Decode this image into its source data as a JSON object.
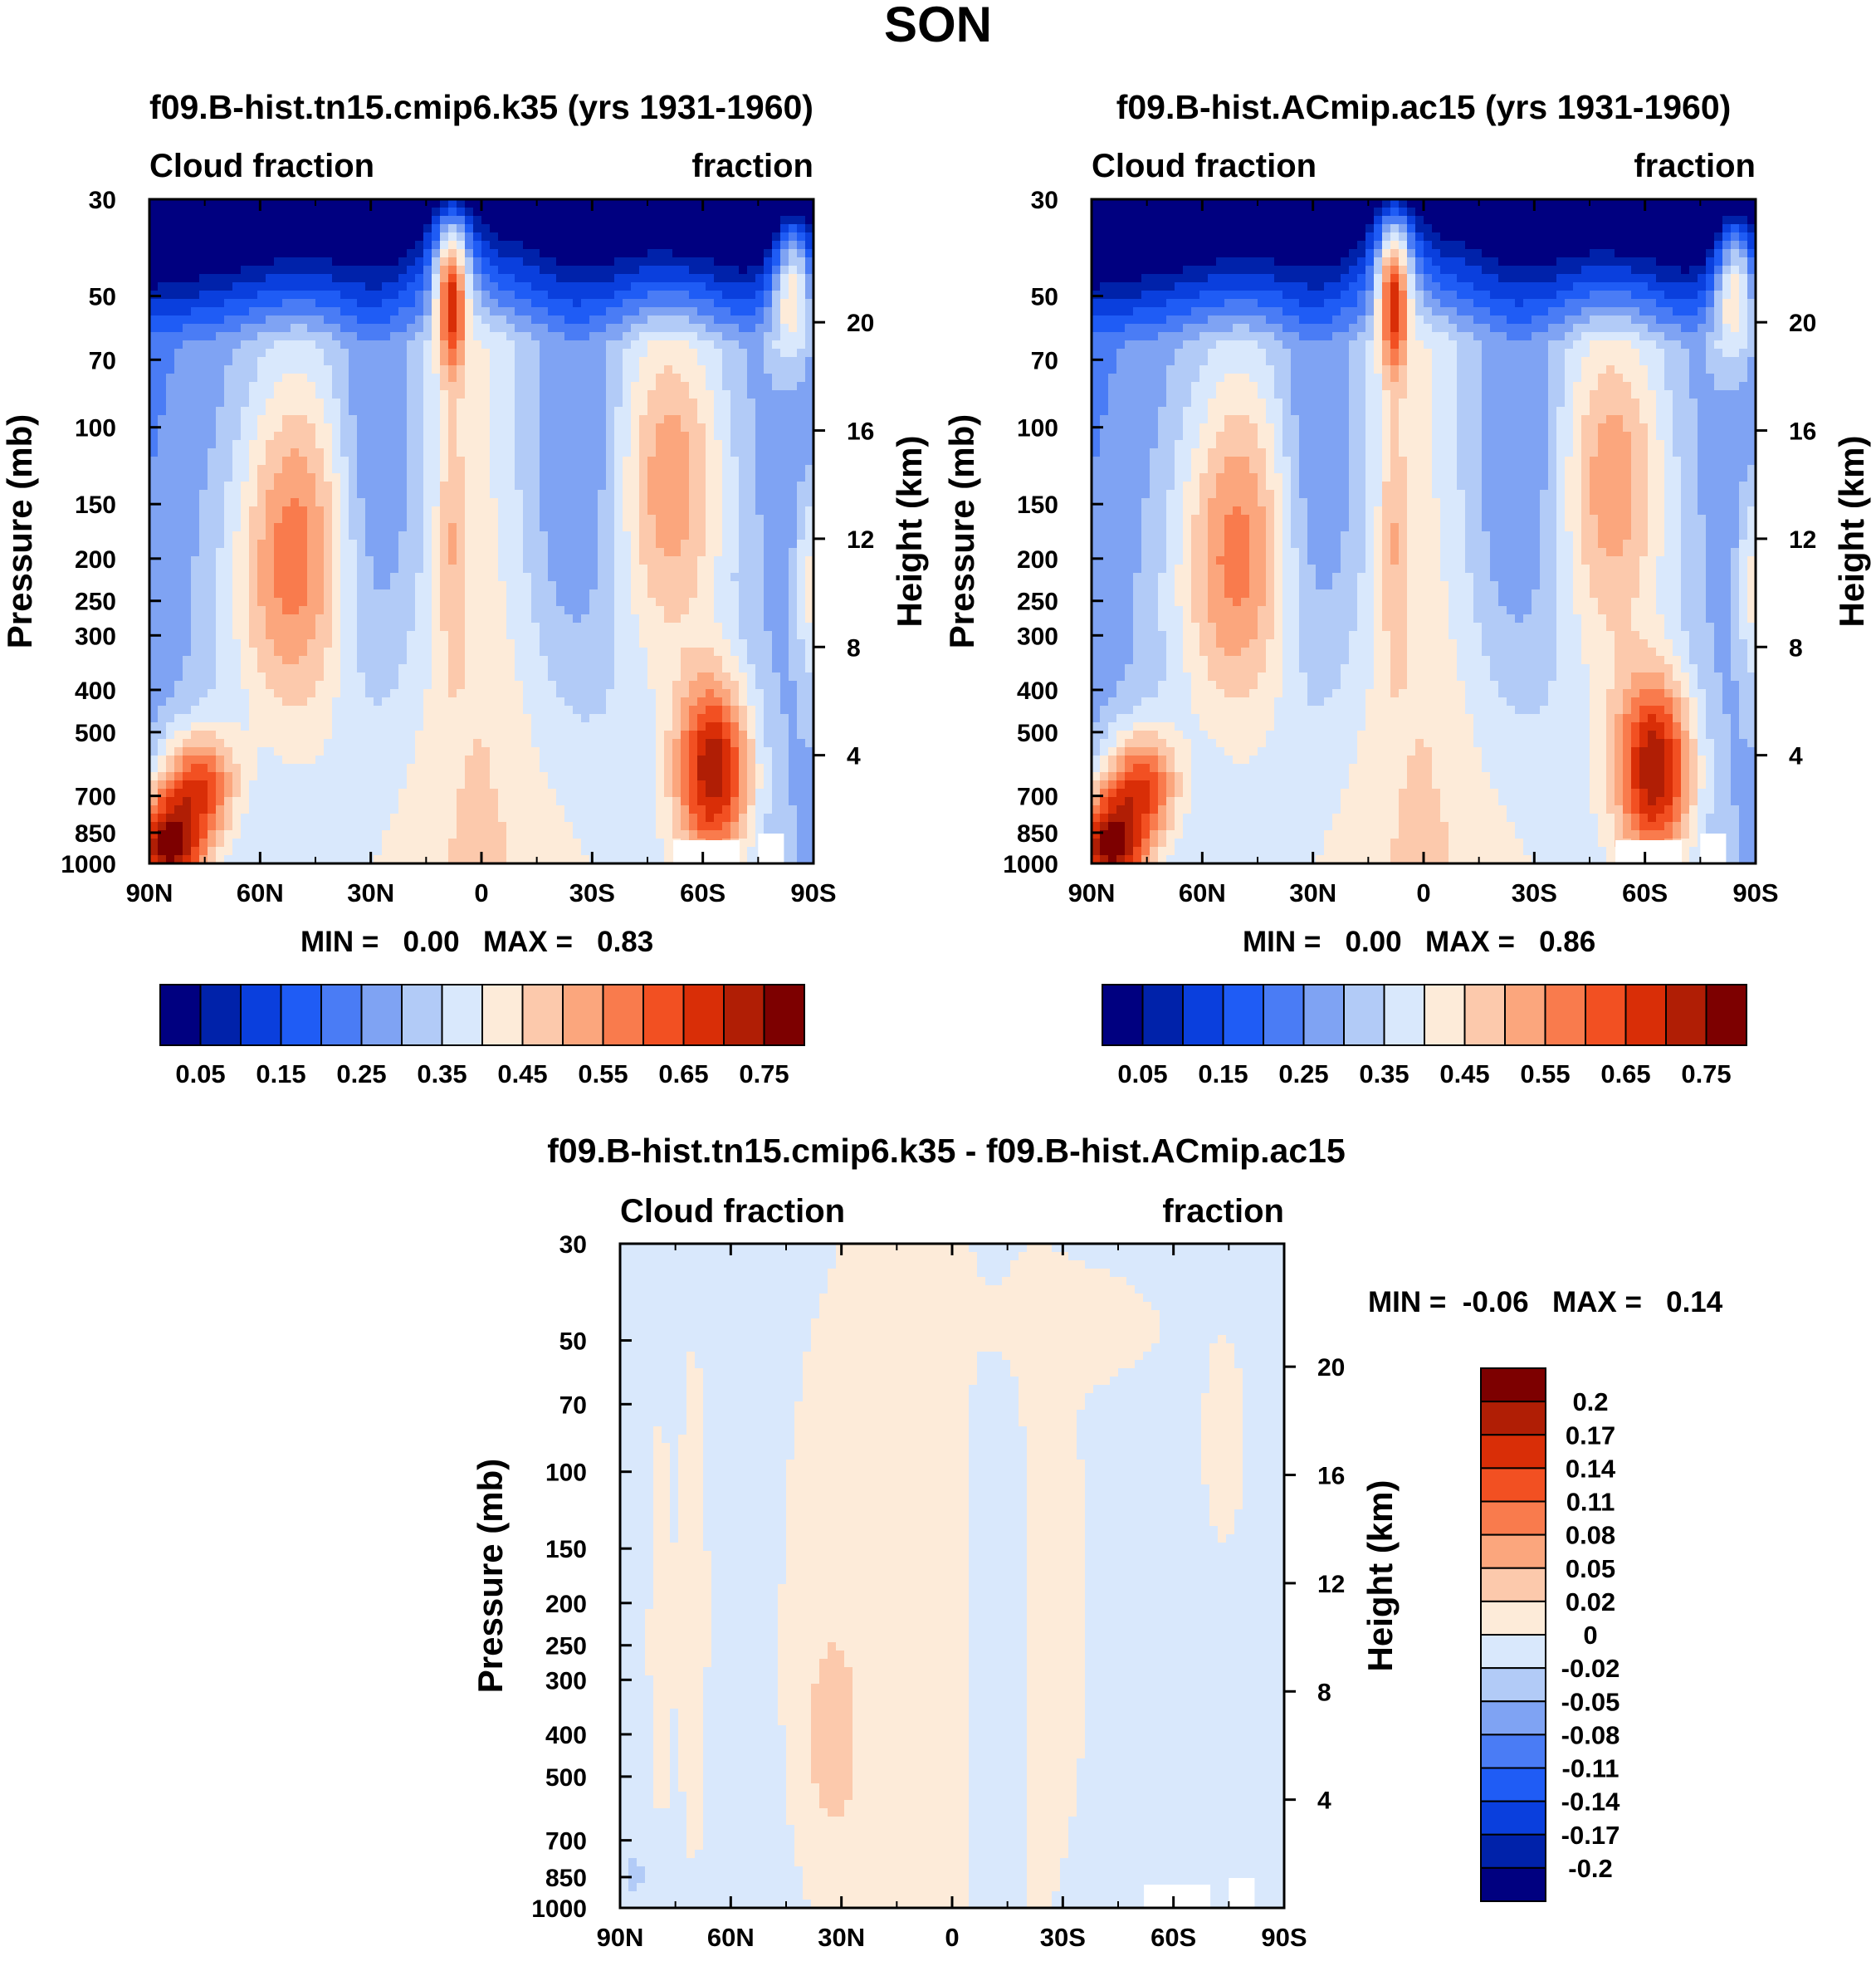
{
  "figure": {
    "title": "SON"
  },
  "colors": {
    "abs_levels": [
      "#000080",
      "#0022aa",
      "#0a3fdd",
      "#1f5cf5",
      "#4a7cf5",
      "#7fa3f3",
      "#b2cbf7",
      "#d9e8fc",
      "#fdebd9",
      "#fcc9ac",
      "#fba67d",
      "#f97b4d",
      "#f25022",
      "#d92e07",
      "#b01e05",
      "#7d0000"
    ],
    "diff_levels": [
      "#000080",
      "#0022aa",
      "#0a3fdd",
      "#1f5cf5",
      "#4a7cf5",
      "#7fa3f3",
      "#b2cbf7",
      "#d9e8fc",
      "#fdebd9",
      "#fcc9ac",
      "#fba67d",
      "#f97b4d",
      "#f25022",
      "#d92e07",
      "#b01e05",
      "#7d0000"
    ]
  },
  "chart_data": [
    {
      "type": "heatmap",
      "title": "f09.B-hist.tn15.cmip6.k35 (yrs 1931-1960)",
      "left_label": "Cloud fraction",
      "right_label": "fraction",
      "ylabel": "Pressure (mb)",
      "ylabel_right": "Height (km)",
      "xlim": [
        90,
        -90
      ],
      "ylim": [
        1000,
        30
      ],
      "x_ticks": [
        90,
        60,
        30,
        0,
        -30,
        -60,
        -90
      ],
      "x_tick_labels": [
        "90N",
        "60N",
        "30N",
        "0",
        "30S",
        "60S",
        "90S"
      ],
      "y_ticks": [
        30,
        50,
        70,
        100,
        150,
        200,
        250,
        300,
        400,
        500,
        700,
        850,
        1000
      ],
      "y_tick_labels": [
        "30",
        "50",
        "70",
        "100",
        "150",
        "200",
        "250",
        "300",
        "400",
        "500",
        "700",
        "850",
        "1000"
      ],
      "height_ticks_km": [
        20,
        16,
        12,
        8,
        4
      ],
      "height_tick_labels": [
        "20",
        "16",
        "12",
        "8",
        "4"
      ],
      "min_label": "MIN =   0.00",
      "max_label": "MAX =   0.83",
      "min": 0.0,
      "max": 0.83,
      "colorbar_levels": [
        0.05,
        0.1,
        0.15,
        0.2,
        0.25,
        0.3,
        0.35,
        0.4,
        0.45,
        0.5,
        0.55,
        0.6,
        0.65,
        0.7,
        0.75
      ],
      "colorbar_labels": [
        "0.05",
        "0.15",
        "0.25",
        "0.35",
        "0.45",
        "0.55",
        "0.65",
        "0.75"
      ],
      "variant": 0
    },
    {
      "type": "heatmap",
      "title": "f09.B-hist.ACmip.ac15 (yrs 1931-1960)",
      "left_label": "Cloud fraction",
      "right_label": "fraction",
      "ylabel": "Pressure (mb)",
      "ylabel_right": "Height (km)",
      "xlim": [
        90,
        -90
      ],
      "ylim": [
        1000,
        30
      ],
      "x_ticks": [
        90,
        60,
        30,
        0,
        -30,
        -60,
        -90
      ],
      "x_tick_labels": [
        "90N",
        "60N",
        "30N",
        "0",
        "30S",
        "60S",
        "90S"
      ],
      "y_ticks": [
        30,
        50,
        70,
        100,
        150,
        200,
        250,
        300,
        400,
        500,
        700,
        850,
        1000
      ],
      "y_tick_labels": [
        "30",
        "50",
        "70",
        "100",
        "150",
        "200",
        "250",
        "300",
        "400",
        "500",
        "700",
        "850",
        "1000"
      ],
      "height_ticks_km": [
        20,
        16,
        12,
        8,
        4
      ],
      "height_tick_labels": [
        "20",
        "16",
        "12",
        "8",
        "4"
      ],
      "min_label": "MIN =   0.00",
      "max_label": "MAX =   0.86",
      "min": 0.0,
      "max": 0.86,
      "colorbar_levels": [
        0.05,
        0.1,
        0.15,
        0.2,
        0.25,
        0.3,
        0.35,
        0.4,
        0.45,
        0.5,
        0.55,
        0.6,
        0.65,
        0.7,
        0.75
      ],
      "colorbar_labels": [
        "0.05",
        "0.15",
        "0.25",
        "0.35",
        "0.45",
        "0.55",
        "0.65",
        "0.75"
      ],
      "variant": 1
    },
    {
      "type": "heatmap",
      "title": "f09.B-hist.tn15.cmip6.k35 - f09.B-hist.ACmip.ac15",
      "left_label": "Cloud fraction",
      "right_label": "fraction",
      "ylabel": "Pressure (mb)",
      "ylabel_right": "Height (km)",
      "xlim": [
        90,
        -90
      ],
      "ylim": [
        1000,
        30
      ],
      "x_ticks": [
        90,
        60,
        30,
        0,
        -30,
        -60,
        -90
      ],
      "x_tick_labels": [
        "90N",
        "60N",
        "30N",
        "0",
        "30S",
        "60S",
        "90S"
      ],
      "y_ticks": [
        30,
        50,
        70,
        100,
        150,
        200,
        250,
        300,
        400,
        500,
        700,
        850,
        1000
      ],
      "y_tick_labels": [
        "30",
        "50",
        "70",
        "100",
        "150",
        "200",
        "250",
        "300",
        "400",
        "500",
        "700",
        "850",
        "1000"
      ],
      "height_ticks_km": [
        20,
        16,
        12,
        8,
        4
      ],
      "height_tick_labels": [
        "20",
        "16",
        "12",
        "8",
        "4"
      ],
      "min_label": "MIN =  -0.06",
      "max_label": "MAX =   0.14",
      "min": -0.06,
      "max": 0.14,
      "colorbar_levels": [
        -0.2,
        -0.17,
        -0.14,
        -0.11,
        -0.08,
        -0.05,
        -0.02,
        0,
        0.02,
        0.05,
        0.08,
        0.11,
        0.14,
        0.17,
        0.2
      ],
      "colorbar_labels": [
        "0.2",
        "0.17",
        "0.14",
        "0.11",
        "0.08",
        "0.05",
        "0.02",
        "0",
        "-0.02",
        "-0.05",
        "-0.08",
        "-0.11",
        "-0.14",
        "-0.17",
        "-0.2"
      ]
    }
  ]
}
